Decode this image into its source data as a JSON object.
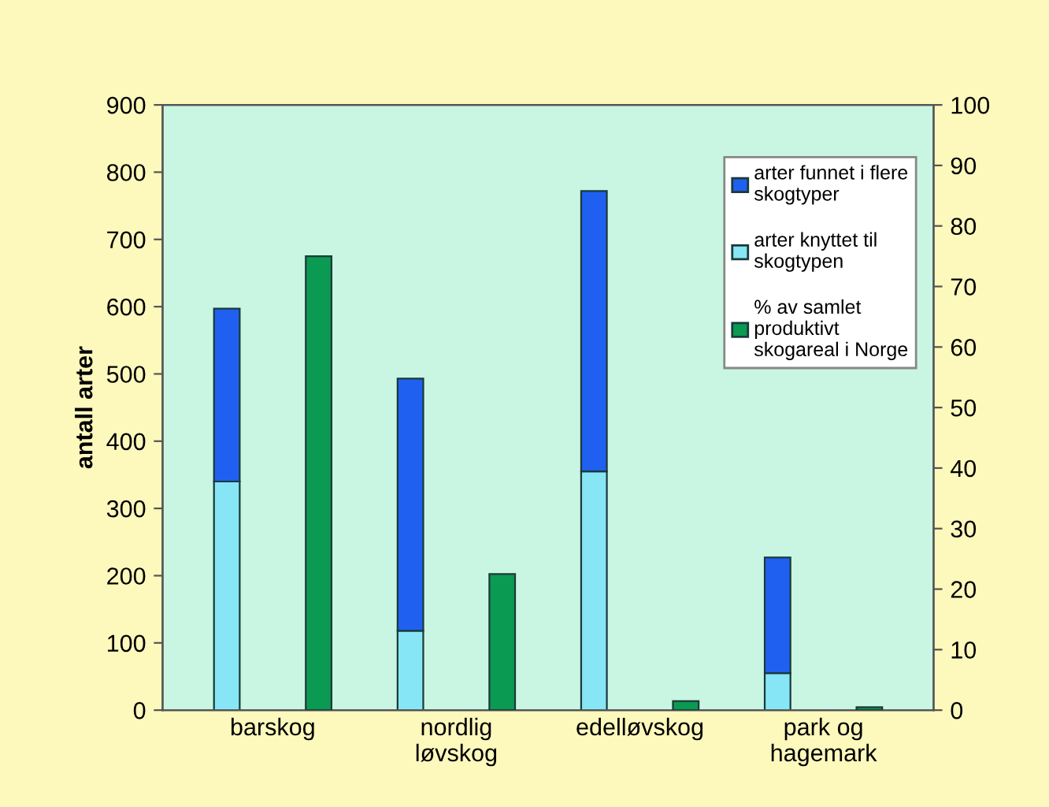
{
  "chart_data": {
    "type": "bar",
    "stacked": true,
    "ylabel": "antall arter",
    "categories": [
      "barskog",
      "nordlig\nløvskog",
      "edelløvskog",
      "park og\nhagemark"
    ],
    "series": [
      {
        "name": "arter knyttet til skogtypen",
        "color": "#87e6f5",
        "values": [
          340,
          118,
          355,
          55
        ]
      },
      {
        "name": "arter funnet i flere skogtyper",
        "color": "#2060f0",
        "values": [
          257,
          375,
          417,
          172
        ]
      },
      {
        "name": "% av samlet produktivt skogareal i Norge",
        "color": "#0b9a52",
        "values": [
          75,
          22.5,
          1.5,
          0.5
        ],
        "axis": "y2"
      }
    ],
    "ylim": [
      0,
      900
    ],
    "yticks": [
      0,
      100,
      200,
      300,
      400,
      500,
      600,
      700,
      800,
      900
    ],
    "y2lim": [
      0,
      100
    ],
    "y2ticks": [
      0,
      10,
      20,
      30,
      40,
      50,
      60,
      70,
      80,
      90,
      100
    ],
    "legend": "top right",
    "grid": false
  }
}
